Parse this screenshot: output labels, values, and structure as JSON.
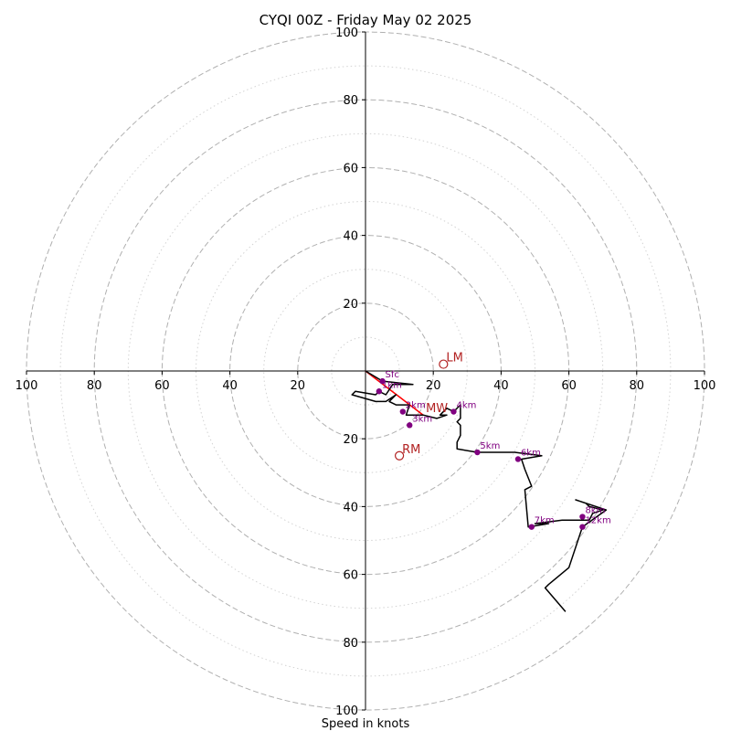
{
  "chart_data": {
    "type": "hodograph",
    "title": "CYQI 00Z - Friday May 02 2025",
    "xlabel": "Speed in knots",
    "units": "knots",
    "rmax": 100,
    "major_rings": [
      20,
      40,
      60,
      80,
      100
    ],
    "minor_rings": [
      10,
      30,
      50,
      70,
      90
    ],
    "x_ticks": [
      "100",
      "80",
      "60",
      "40",
      "20",
      "20",
      "40",
      "60",
      "80",
      "100"
    ],
    "y_ticks": [
      "100",
      "80",
      "60",
      "40",
      "20",
      "20",
      "40",
      "60",
      "80",
      "100"
    ],
    "trace": [
      [
        0,
        0
      ],
      [
        5,
        -3
      ],
      [
        14,
        -4
      ],
      [
        8,
        -4
      ],
      [
        6,
        -7
      ],
      [
        4,
        -6
      ],
      [
        3,
        -7
      ],
      [
        -3,
        -6
      ],
      [
        -4,
        -7
      ],
      [
        3,
        -9
      ],
      [
        6,
        -9
      ],
      [
        9,
        -7
      ],
      [
        7,
        -9
      ],
      [
        9,
        -10
      ],
      [
        13,
        -10
      ],
      [
        12,
        -13
      ],
      [
        17,
        -13
      ],
      [
        21,
        -14
      ],
      [
        24,
        -13
      ],
      [
        22,
        -13
      ],
      [
        24,
        -11
      ],
      [
        26,
        -12
      ],
      [
        28,
        -10
      ],
      [
        28,
        -14
      ],
      [
        27,
        -15
      ],
      [
        28,
        -16
      ],
      [
        28,
        -19
      ],
      [
        27,
        -21
      ],
      [
        27,
        -23
      ],
      [
        33,
        -24
      ],
      [
        44,
        -24
      ],
      [
        52,
        -25
      ],
      [
        46,
        -26
      ],
      [
        47,
        -29
      ],
      [
        49,
        -34
      ],
      [
        47,
        -35
      ],
      [
        48,
        -46
      ],
      [
        54,
        -45
      ],
      [
        50,
        -45
      ],
      [
        58,
        -44
      ],
      [
        66,
        -44
      ],
      [
        67,
        -42
      ],
      [
        70,
        -41
      ],
      [
        66,
        -40
      ],
      [
        65,
        -39
      ],
      [
        62,
        -38
      ],
      [
        71,
        -41
      ],
      [
        64,
        -46
      ],
      [
        60,
        -58
      ],
      [
        54,
        -63
      ],
      [
        53,
        -64
      ],
      [
        59,
        -71
      ]
    ],
    "height_markers": [
      {
        "label": "Sfc",
        "u": 5,
        "v": -3
      },
      {
        "label": "1km",
        "u": 4,
        "v": -6
      },
      {
        "label": "2km",
        "u": 11,
        "v": -12
      },
      {
        "label": "3km",
        "u": 13,
        "v": -16
      },
      {
        "label": "4km",
        "u": 26,
        "v": -12
      },
      {
        "label": "5km",
        "u": 33,
        "v": -24
      },
      {
        "label": "6km",
        "u": 45,
        "v": -26
      },
      {
        "label": "7km",
        "u": 49,
        "v": -46
      },
      {
        "label": "8km",
        "u": 64,
        "v": -43
      },
      {
        "label": "12km",
        "u": 64,
        "v": -46
      }
    ],
    "motion_markers": [
      {
        "label": "LM",
        "u": 23,
        "v": 2
      },
      {
        "label": "MW",
        "u": 17,
        "v": -13
      },
      {
        "label": "RM",
        "u": 10,
        "v": -25
      }
    ],
    "shear_vector": [
      [
        0,
        0
      ],
      [
        17,
        -13
      ]
    ],
    "colors": {
      "trace": "#000000",
      "height_marker": "#800080",
      "motion": "#b22222",
      "shear": "#ff0000",
      "major_ring": "#b0b0b0",
      "minor_ring": "#d3d3d3"
    }
  }
}
